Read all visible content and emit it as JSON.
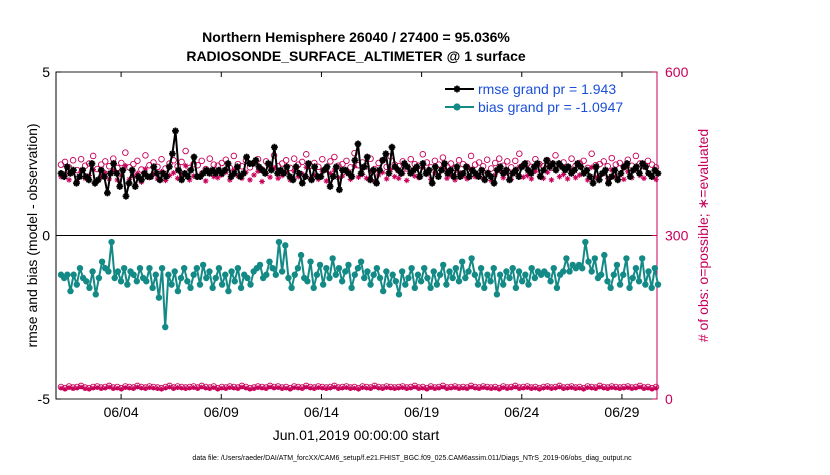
{
  "chart_data": {
    "type": "line",
    "title_line1": "Northern Hemisphere 26040 / 27400 = 95.036%",
    "title_line2": "RADIOSONDE_SURFACE_ALTIMETER @ 1 surface",
    "xlabel": "Jun.01,2019 00:00:00 start",
    "ylabel_left": "rmse and bias (model - observation)",
    "ylabel_right": "# of obs: o=possible; ∗=evaluated",
    "footer": "data file: /Users/raeder/DAI/ATM_forcXX/CAM6_setup/f.e21.FHIST_BGC.f09_025.CAM6assim.011/Diags_NTrS_2019-06/obs_diag_output.nc",
    "x_ticks": [
      "06/04",
      "06/09",
      "06/14",
      "06/19",
      "06/24",
      "06/29"
    ],
    "x_tick_days": [
      4,
      9,
      14,
      19,
      24,
      29
    ],
    "xlim": [
      0.75,
      30.75
    ],
    "ylim_left": [
      -5,
      5
    ],
    "left_ticks": [
      "5",
      "0",
      "-5"
    ],
    "left_tick_values": [
      5,
      0,
      -5
    ],
    "ylim_right": [
      0,
      600
    ],
    "right_ticks": [
      "600",
      "300",
      "0"
    ],
    "right_tick_values": [
      600,
      300,
      0
    ],
    "grid": false,
    "legend_position": "top-right",
    "colors": {
      "rmse": "#000000",
      "bias": "#138a86",
      "obs": "#c8005a",
      "legend_text": "#1a4fd6"
    },
    "series": [
      {
        "name": "rmse grand pr = 1.943",
        "values": [
          1.9,
          1.8,
          2.1,
          1.9,
          2.0,
          1.6,
          1.8,
          2.0,
          1.8,
          1.7,
          2.2,
          1.6,
          1.7,
          2.0,
          1.8,
          1.3,
          1.9,
          2.2,
          1.9,
          1.5,
          2.0,
          1.2,
          1.6,
          2.0,
          1.5,
          1.8,
          1.7,
          1.9,
          1.8,
          1.8,
          2.1,
          1.9,
          1.7,
          1.9,
          1.8,
          2.1,
          2.5,
          3.2,
          2.0,
          1.7,
          1.9,
          1.8,
          2.0,
          2.4,
          1.8,
          1.8,
          1.9,
          2.0,
          1.9,
          2.0,
          1.9,
          2.0,
          1.9,
          2.0,
          2.2,
          1.8,
          1.9,
          2.1,
          1.8,
          1.9,
          2.4,
          2.2,
          2.2,
          2.3,
          2.1,
          2.0,
          1.9,
          2.2,
          2.0,
          2.7,
          1.9,
          2.0,
          1.9,
          2.1,
          1.8,
          1.7,
          2.1,
          1.9,
          1.6,
          1.8,
          2.2,
          1.7,
          2.1,
          1.8,
          1.8,
          2.0,
          2.1,
          1.5,
          1.8,
          2.1,
          1.4,
          2.0,
          2.0,
          1.9,
          1.8,
          2.3,
          2.8,
          1.9,
          2.1,
          2.4,
          1.7,
          2.0,
          1.6,
          2.0,
          2.3,
          2.5,
          1.9,
          2.7,
          2.1,
          2.0,
          1.9,
          2.2,
          2.1,
          1.9,
          2.0,
          2.1,
          1.8,
          2.2,
          1.9,
          2.0,
          1.6,
          2.1,
          1.8,
          2.0,
          2.2,
          1.9,
          2.0,
          1.8,
          2.1,
          1.8,
          1.9,
          2.1,
          1.8,
          2.0,
          1.9,
          1.8,
          2.0,
          1.7,
          1.9,
          1.8,
          1.6,
          2.0,
          2.1,
          1.9,
          2.0,
          1.7,
          1.9,
          2.0,
          1.8,
          2.1,
          2.2,
          2.0,
          1.9,
          2.1,
          2.2,
          1.8,
          2.0,
          2.3,
          2.1,
          2.2,
          2.0,
          2.2,
          2.1,
          2.0,
          2.1,
          1.9,
          2.0,
          2.2,
          2.1,
          1.9,
          2.0,
          1.8,
          1.6,
          2.1,
          1.7,
          1.9,
          2.0,
          1.6,
          1.8,
          2.0,
          1.7,
          1.9,
          2.1,
          2.2,
          1.8,
          2.0,
          2.1,
          1.9,
          2.2,
          2.1,
          1.9,
          1.8,
          2.0,
          1.9
        ]
      },
      {
        "name": "bias grand pr = -1.0947",
        "values": [
          -1.2,
          -1.3,
          -1.2,
          -1.7,
          -1.2,
          -1.5,
          -1.0,
          -1.3,
          -1.4,
          -1.6,
          -1.1,
          -1.8,
          -1.3,
          -0.8,
          -1.0,
          -1.1,
          -0.2,
          -1.3,
          -1.1,
          -1.4,
          -1.0,
          -1.5,
          -1.1,
          -1.2,
          -1.4,
          -1.0,
          -1.3,
          -1.4,
          -1.0,
          -1.6,
          -1.2,
          -1.9,
          -1.0,
          -2.8,
          -1.2,
          -1.5,
          -1.1,
          -1.7,
          -1.3,
          -1.0,
          -1.4,
          -1.6,
          -1.2,
          -1.0,
          -1.5,
          -0.9,
          -1.3,
          -1.1,
          -1.6,
          -1.3,
          -1.0,
          -1.5,
          -1.2,
          -1.7,
          -1.1,
          -1.4,
          -1.0,
          -1.6,
          -1.2,
          -1.3,
          -1.5,
          -1.1,
          -1.0,
          -0.9,
          -1.3,
          -1.2,
          -0.8,
          -1.0,
          -1.2,
          -0.2,
          -1.1,
          -0.3,
          -1.3,
          -1.6,
          -1.2,
          -1.0,
          -0.6,
          -1.3,
          -1.4,
          -0.8,
          -1.6,
          -1.2,
          -0.9,
          -1.5,
          -1.0,
          -1.3,
          -0.7,
          -1.2,
          -1.0,
          -1.4,
          -1.1,
          -0.9,
          -1.6,
          -1.2,
          -1.0,
          -0.8,
          -1.3,
          -1.1,
          -1.5,
          -1.2,
          -1.0,
          -1.3,
          -1.7,
          -1.1,
          -1.5,
          -1.2,
          -1.4,
          -1.8,
          -1.1,
          -1.5,
          -1.3,
          -1.0,
          -1.6,
          -1.2,
          -1.4,
          -1.0,
          -1.3,
          -1.6,
          -1.1,
          -1.5,
          -1.2,
          -0.9,
          -1.5,
          -1.1,
          -1.3,
          -1.0,
          -1.4,
          -0.8,
          -1.3,
          -1.1,
          -0.7,
          -1.2,
          -1.5,
          -1.0,
          -1.6,
          -1.2,
          -1.4,
          -1.0,
          -1.8,
          -1.2,
          -1.5,
          -1.1,
          -1.3,
          -1.0,
          -1.6,
          -1.1,
          -1.4,
          -1.2,
          -1.5,
          -1.0,
          -1.3,
          -1.1,
          -1.2,
          -1.1,
          -1.2,
          -1.4,
          -1.0,
          -1.6,
          -1.2,
          -1.1,
          -0.7,
          -1.1,
          -0.9,
          -1.0,
          -0.9,
          -1.0,
          -0.2,
          -0.8,
          -1.1,
          -0.7,
          -1.3,
          -1.2,
          -0.6,
          -1.4,
          -1.6,
          -1.2,
          -0.9,
          -1.5,
          -1.2,
          -0.7,
          -1.6,
          -1.3,
          -1.0,
          -1.4,
          -0.7,
          -1.5,
          -1.1,
          -1.6,
          -1.0,
          -1.5
        ]
      }
    ],
    "obs_possible": [
      430,
      435,
      425,
      438,
      420,
      440,
      428,
      432,
      446,
      422,
      430,
      436,
      427,
      441,
      424,
      433,
      452,
      425,
      431,
      437,
      421,
      447,
      429,
      434,
      426,
      440,
      423,
      432,
      438,
      427,
      435,
      455,
      424,
      431,
      429,
      437,
      422,
      441,
      430,
      428,
      433,
      439,
      424,
      446,
      431,
      427,
      438,
      425,
      433,
      440,
      421,
      436,
      429,
      447,
      427,
      432,
      438,
      424,
      441,
      430,
      435,
      449,
      428,
      433,
      426,
      440,
      423,
      436,
      444,
      428,
      431,
      437,
      425,
      451,
      429,
      434,
      427,
      441,
      422,
      433,
      438,
      426,
      445,
      430,
      427,
      436,
      423,
      440,
      431,
      428,
      449,
      434,
      425,
      437,
      430,
      443,
      427,
      432,
      424,
      438,
      431,
      426,
      446,
      430,
      434,
      427,
      439,
      423,
      433,
      441,
      428,
      436,
      425,
      437,
      450,
      429,
      432,
      426,
      440,
      431,
      427,
      438,
      424,
      447,
      430,
      434,
      426,
      441,
      428,
      433,
      437,
      424,
      450,
      429,
      431,
      436,
      427,
      442,
      430,
      433,
      425,
      439,
      428,
      446,
      432,
      427,
      437,
      430,
      425
    ],
    "obs_evaluated": [
      408,
      413,
      402,
      416,
      399,
      418,
      405,
      410,
      421,
      400,
      408,
      415,
      404,
      419,
      402,
      411,
      428,
      403,
      409,
      414,
      398,
      422,
      406,
      412,
      404,
      417,
      401,
      410,
      415,
      405,
      413,
      428,
      402,
      409,
      407,
      415,
      400,
      419,
      408,
      406,
      411,
      416,
      402,
      420,
      409,
      405,
      416,
      402,
      411,
      418,
      399,
      414,
      407,
      424,
      405,
      410,
      416,
      402,
      418,
      408,
      413,
      425,
      405,
      411,
      403,
      418,
      400,
      414,
      420,
      406,
      409,
      415,
      403,
      427,
      407,
      412,
      405,
      418,
      399,
      411,
      416,
      404,
      421,
      408,
      405,
      414,
      401,
      418,
      409,
      406,
      425,
      412,
      403,
      415,
      408,
      420,
      405,
      410,
      402,
      416,
      409,
      404,
      421,
      408,
      412,
      405,
      416,
      401,
      411,
      419,
      406,
      414,
      403,
      415,
      426,
      407,
      410,
      404,
      418,
      409,
      405,
      416,
      402,
      422,
      408,
      412,
      404,
      419,
      406,
      411,
      415,
      402,
      425,
      407,
      409,
      414,
      405,
      420,
      408,
      411,
      403,
      417,
      406,
      421,
      410,
      405,
      415,
      408,
      403
    ],
    "obs_bottom_possible": [
      22,
      20,
      23,
      21,
      22,
      24,
      21,
      20,
      22,
      23,
      21,
      22,
      24,
      21,
      22,
      20,
      23,
      22,
      21,
      24,
      22,
      21,
      23,
      22,
      21,
      20,
      22,
      24,
      21,
      23,
      22,
      21,
      22,
      23,
      21,
      24,
      22,
      21,
      23,
      20,
      22,
      21,
      23,
      22,
      21,
      24,
      22,
      20,
      21,
      23,
      22,
      21,
      24,
      22,
      23,
      21,
      22,
      20,
      23,
      22,
      21,
      24,
      22,
      21,
      23,
      22,
      21,
      22,
      24,
      21,
      22,
      23,
      21,
      22,
      20,
      23,
      22,
      21,
      24,
      22,
      21,
      23,
      22,
      21,
      22,
      23,
      21,
      22,
      24,
      21,
      22,
      20,
      23,
      21,
      22,
      24,
      21,
      22,
      23,
      21,
      22,
      21,
      24,
      22,
      21,
      23,
      22,
      21,
      22,
      20,
      23,
      21,
      22,
      24,
      21,
      22,
      23,
      21,
      22,
      20,
      22,
      23,
      21,
      22,
      24,
      21,
      22,
      23,
      21,
      22,
      20,
      23,
      22,
      21,
      24,
      22,
      21,
      23,
      22,
      21,
      22,
      23,
      21,
      22,
      24,
      21,
      22,
      20,
      22
    ],
    "obs_bottom_evaluated": [
      20,
      18,
      21,
      19,
      20,
      22,
      19,
      18,
      20,
      21,
      19,
      20,
      22,
      19,
      20,
      18,
      21,
      20,
      19,
      22,
      20,
      19,
      21,
      20,
      19,
      18,
      20,
      22,
      19,
      21,
      20,
      19,
      20,
      21,
      19,
      22,
      20,
      19,
      21,
      18,
      20,
      19,
      21,
      20,
      19,
      22,
      20,
      18,
      19,
      21,
      20,
      19,
      22,
      20,
      21,
      19,
      20,
      18,
      21,
      20,
      19,
      22,
      20,
      19,
      21,
      20,
      19,
      20,
      22,
      19,
      20,
      21,
      19,
      20,
      18,
      21,
      20,
      19,
      22,
      20,
      19,
      21,
      20,
      19,
      20,
      21,
      19,
      20,
      22,
      19,
      20,
      18,
      21,
      19,
      20,
      22,
      19,
      20,
      21,
      19,
      20,
      19,
      22,
      20,
      19,
      21,
      20,
      19,
      20,
      18,
      21,
      19,
      20,
      22,
      19,
      20,
      21,
      19,
      20,
      18,
      20,
      21,
      19,
      20,
      22,
      19,
      20,
      21,
      19,
      20,
      18,
      21,
      20,
      19,
      22,
      20,
      19,
      21,
      20,
      19,
      20,
      21,
      19,
      20,
      22,
      19,
      20,
      18,
      20
    ]
  }
}
